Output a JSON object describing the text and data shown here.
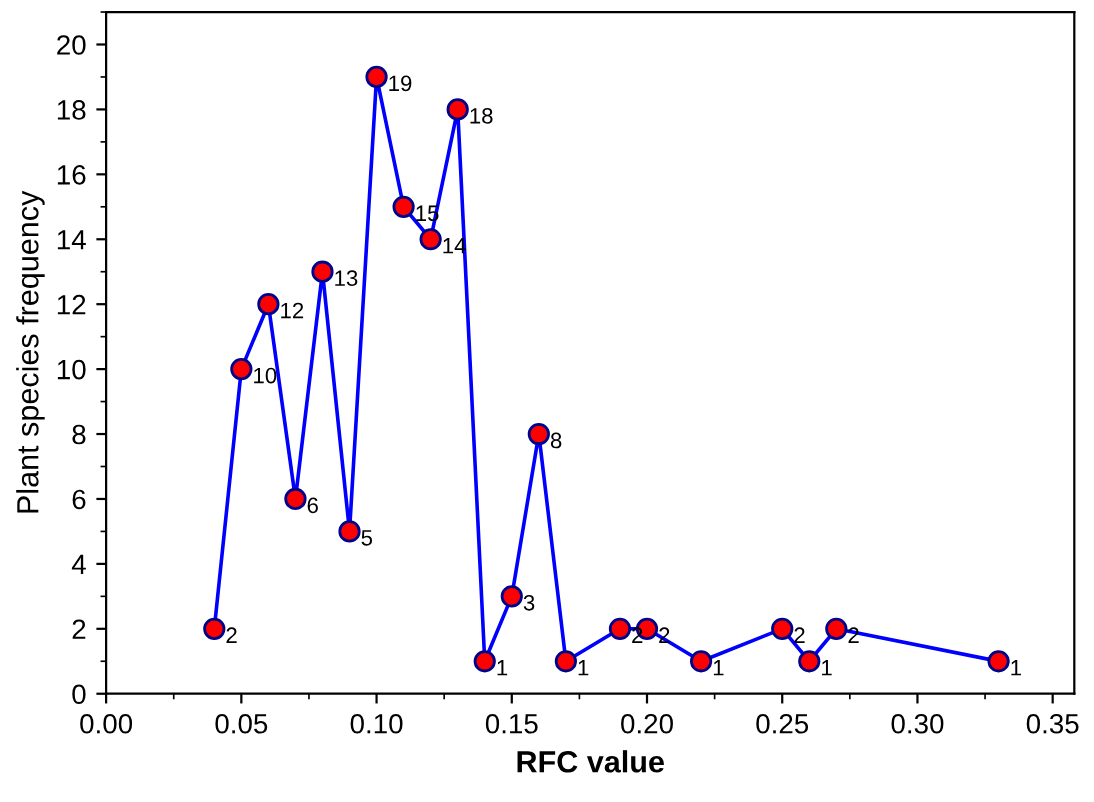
{
  "chart_data": {
    "type": "line",
    "xlabel": "RFC value",
    "ylabel": "Plant species frequency",
    "x": [
      0.04,
      0.05,
      0.06,
      0.07,
      0.08,
      0.09,
      0.1,
      0.11,
      0.12,
      0.13,
      0.14,
      0.15,
      0.16,
      0.17,
      0.19,
      0.2,
      0.22,
      0.25,
      0.26,
      0.27,
      0.33
    ],
    "series": [
      {
        "color": "#0000ff",
        "values": [
          2,
          10,
          12,
          6,
          13,
          5,
          19,
          15,
          14,
          18,
          1,
          3,
          8,
          1,
          2,
          2,
          1,
          2,
          1,
          2,
          1
        ]
      }
    ],
    "data_labels": true,
    "marker": "circle",
    "line_style": "solid",
    "grid": false,
    "legend": false,
    "xlim": [
      0,
      0.358
    ],
    "ylim": [
      0,
      21
    ],
    "xticks": [
      {
        "value": 0,
        "label": "0.00"
      },
      {
        "value": 0.05,
        "label": "0.05"
      },
      {
        "value": 0.1,
        "label": "0.10"
      },
      {
        "value": 0.15,
        "label": "0.15"
      },
      {
        "value": 0.2,
        "label": "0.20"
      },
      {
        "value": 0.25,
        "label": "0.25"
      },
      {
        "value": 0.3,
        "label": "0.30"
      },
      {
        "value": 0.35,
        "label": "0.35"
      }
    ],
    "yticks": [
      0,
      2,
      4,
      6,
      8,
      10,
      12,
      14,
      16,
      18,
      20
    ]
  }
}
